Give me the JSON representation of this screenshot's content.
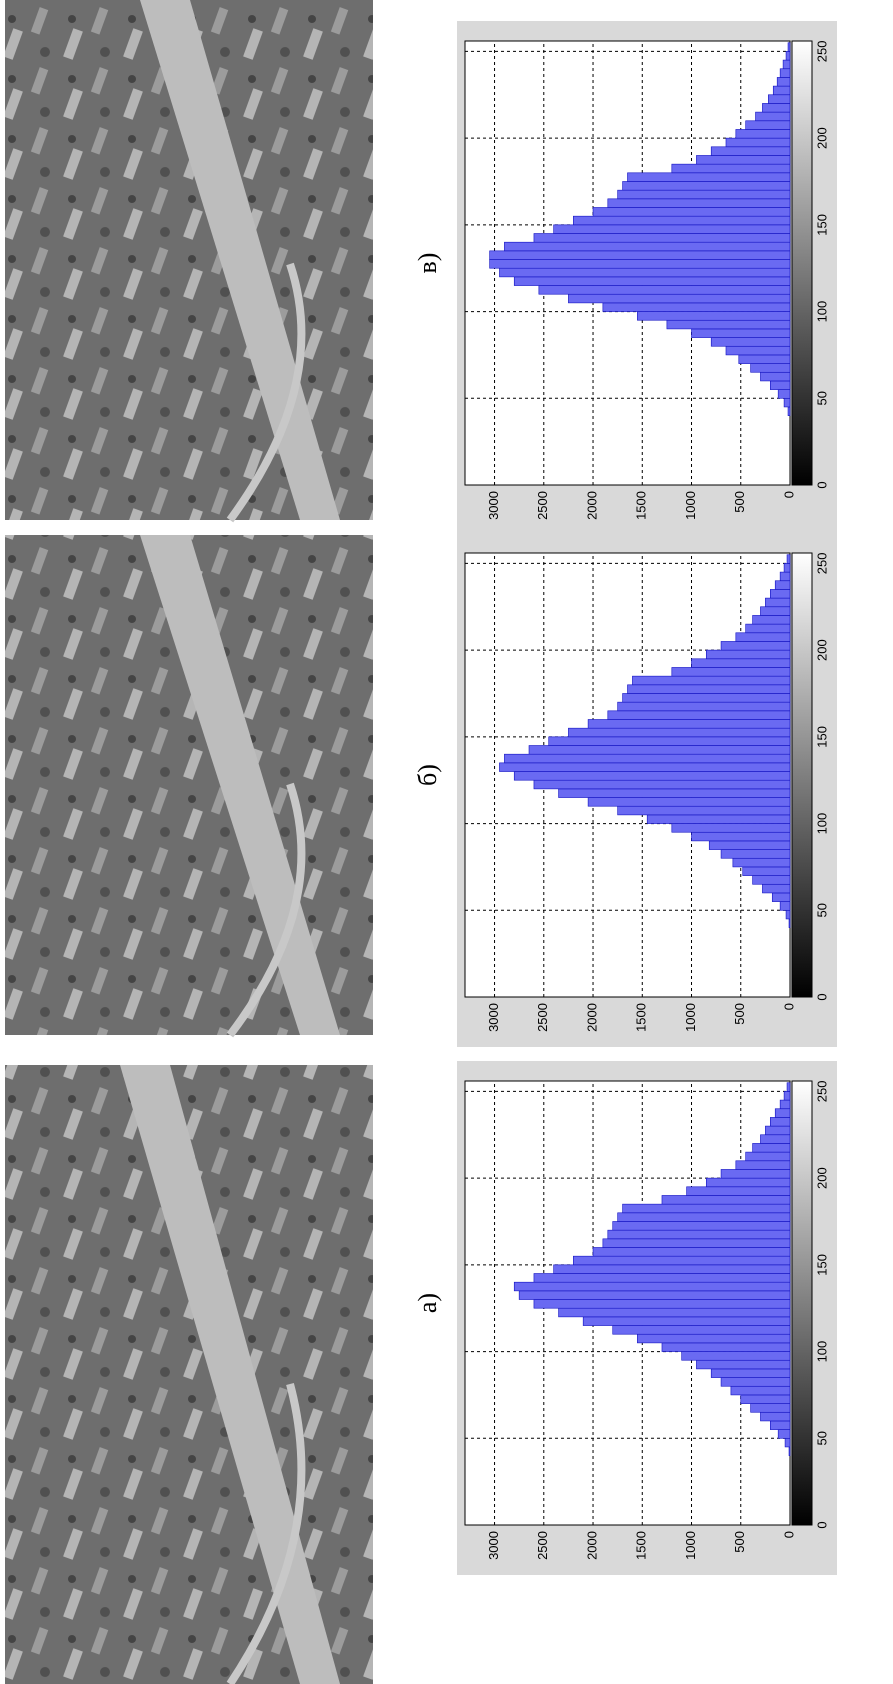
{
  "chart_data": [
    {
      "type": "histogram",
      "title": "а)",
      "color": "#6a6af2",
      "edge_color": "#1010c0",
      "bins": [
        0,
        5,
        10,
        15,
        20,
        25,
        30,
        35,
        40,
        45,
        50,
        55,
        60,
        65,
        70,
        75,
        80,
        85,
        90,
        95,
        100,
        105,
        110,
        115,
        120,
        125,
        130,
        135,
        140,
        145,
        150,
        155,
        160,
        165,
        170,
        175,
        180,
        185,
        190,
        195,
        200,
        205,
        210,
        215,
        220,
        225,
        230,
        235,
        240,
        245,
        250,
        255
      ],
      "values": [
        0,
        0,
        0,
        0,
        0,
        0,
        0,
        0,
        10,
        50,
        120,
        200,
        300,
        400,
        500,
        600,
        700,
        800,
        950,
        1100,
        1300,
        1550,
        1800,
        2100,
        2350,
        2600,
        2750,
        2800,
        2600,
        2400,
        2200,
        2000,
        1900,
        1850,
        1800,
        1750,
        1700,
        1300,
        1050,
        850,
        700,
        550,
        450,
        380,
        300,
        250,
        200,
        150,
        100,
        60,
        30
      ],
      "xlim": [
        0,
        256
      ],
      "ylim": [
        0,
        3300
      ],
      "xticks": [
        0,
        50,
        100,
        150,
        200,
        250
      ],
      "yticks": [
        0,
        500,
        1000,
        1500,
        2000,
        2500,
        3000
      ],
      "grid": true
    },
    {
      "type": "histogram",
      "title": "б)",
      "color": "#6a6af2",
      "edge_color": "#1010c0",
      "bins": [
        0,
        5,
        10,
        15,
        20,
        25,
        30,
        35,
        40,
        45,
        50,
        55,
        60,
        65,
        70,
        75,
        80,
        85,
        90,
        95,
        100,
        105,
        110,
        115,
        120,
        125,
        130,
        135,
        140,
        145,
        150,
        155,
        160,
        165,
        170,
        175,
        180,
        185,
        190,
        195,
        200,
        205,
        210,
        215,
        220,
        225,
        230,
        235,
        240,
        245,
        250,
        255
      ],
      "values": [
        0,
        0,
        0,
        0,
        0,
        0,
        0,
        0,
        10,
        40,
        100,
        180,
        280,
        380,
        480,
        580,
        700,
        820,
        1000,
        1200,
        1450,
        1750,
        2050,
        2350,
        2600,
        2800,
        2950,
        2900,
        2650,
        2450,
        2250,
        2050,
        1850,
        1750,
        1700,
        1650,
        1600,
        1200,
        1000,
        850,
        700,
        550,
        450,
        380,
        300,
        250,
        200,
        150,
        100,
        60,
        30
      ],
      "xlim": [
        0,
        256
      ],
      "ylim": [
        0,
        3300
      ],
      "xticks": [
        0,
        50,
        100,
        150,
        200,
        250
      ],
      "yticks": [
        0,
        500,
        1000,
        1500,
        2000,
        2500,
        3000
      ],
      "grid": true
    },
    {
      "type": "histogram",
      "title": "в)",
      "color": "#6a6af2",
      "edge_color": "#1010c0",
      "bins": [
        0,
        5,
        10,
        15,
        20,
        25,
        30,
        35,
        40,
        45,
        50,
        55,
        60,
        65,
        70,
        75,
        80,
        85,
        90,
        95,
        100,
        105,
        110,
        115,
        120,
        125,
        130,
        135,
        140,
        145,
        150,
        155,
        160,
        165,
        170,
        175,
        180,
        185,
        190,
        195,
        200,
        205,
        210,
        215,
        220,
        225,
        230,
        235,
        240,
        245,
        250,
        255
      ],
      "values": [
        0,
        0,
        0,
        0,
        0,
        0,
        0,
        0,
        20,
        60,
        120,
        200,
        300,
        400,
        520,
        650,
        800,
        1000,
        1250,
        1550,
        1900,
        2250,
        2550,
        2800,
        2950,
        3050,
        3050,
        2900,
        2600,
        2400,
        2200,
        2000,
        1850,
        1750,
        1700,
        1650,
        1200,
        950,
        800,
        650,
        550,
        450,
        350,
        280,
        220,
        170,
        130,
        100,
        70,
        40,
        20
      ],
      "xlim": [
        0,
        256
      ],
      "ylim": [
        0,
        3300
      ],
      "xticks": [
        0,
        50,
        100,
        150,
        200,
        250
      ],
      "yticks": [
        0,
        500,
        1000,
        1500,
        2000,
        2500,
        3000
      ],
      "grid": true
    }
  ]
}
